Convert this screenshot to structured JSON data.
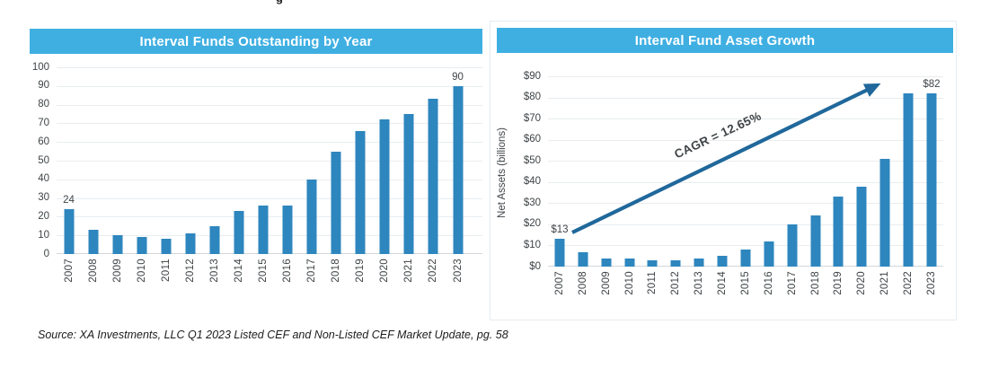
{
  "page": {
    "clipped_text_fragment": "g",
    "source_note": "Source: XA Investments, LLC Q1 2023 Listed CEF and Non-Listed CEF Market Update, pg. 58"
  },
  "colors": {
    "title_bar_bg": "#3fafe2",
    "title_text": "#ffffff",
    "bar_fill": "#2e86be",
    "arrow": "#20689b",
    "gridline": "#e9edf0",
    "axis_text": "#3f4447"
  },
  "chart_data": [
    {
      "type": "bar",
      "title": "Interval Funds Outstanding by Year",
      "categories": [
        "2007",
        "2008",
        "2009",
        "2010",
        "2011",
        "2012",
        "2013",
        "2014",
        "2015",
        "2016",
        "2017",
        "2018",
        "2019",
        "2020",
        "2021",
        "2022",
        "2023"
      ],
      "values": [
        24,
        13,
        10,
        9,
        8,
        11,
        15,
        23,
        26,
        26,
        40,
        55,
        66,
        72,
        75,
        83,
        90
      ],
      "xlabel": "",
      "ylabel": "",
      "ylim": [
        0,
        100
      ],
      "ytick_step": 10,
      "ytick_prefix": "",
      "grid": true,
      "legend": "none",
      "point_labels": [
        {
          "index": 0,
          "text": "24"
        },
        {
          "index": 16,
          "text": "90"
        }
      ]
    },
    {
      "type": "bar",
      "title": "Interval Fund Asset Growth",
      "categories": [
        "2007",
        "2008",
        "2009",
        "2010",
        "2011",
        "2012",
        "2013",
        "2014",
        "2015",
        "2016",
        "2017",
        "2018",
        "2019",
        "2020",
        "2021",
        "2022",
        "2023"
      ],
      "values": [
        13,
        7,
        4,
        4,
        3,
        3,
        4,
        5,
        8,
        12,
        20,
        24,
        33,
        38,
        51,
        82,
        82
      ],
      "xlabel": "",
      "ylabel": "Net Assets (billions)",
      "ylim": [
        0,
        90
      ],
      "ytick_step": 10,
      "ytick_prefix": "$",
      "grid": true,
      "legend": "none",
      "annotation": {
        "text": "CAGR = 12.65%"
      },
      "point_labels": [
        {
          "index": 0,
          "text": "$13"
        },
        {
          "index": 16,
          "text": "$82"
        }
      ]
    }
  ]
}
